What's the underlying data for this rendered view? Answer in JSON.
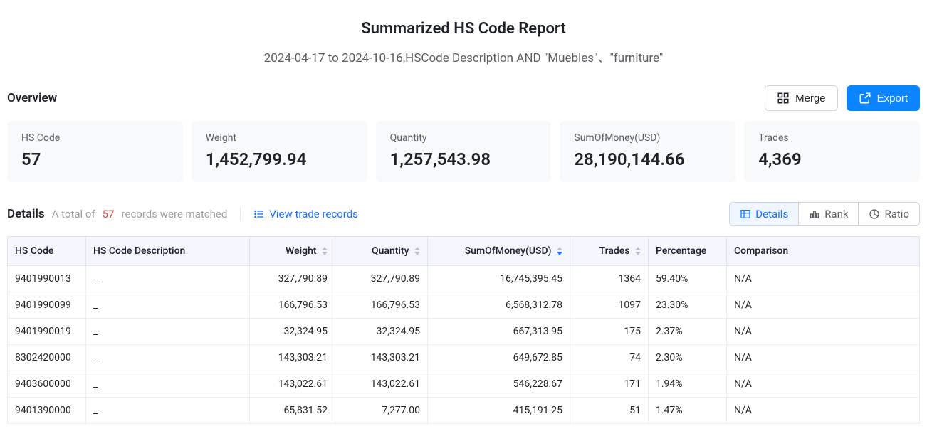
{
  "header": {
    "title": "Summarized HS Code Report",
    "subtitle": "2024-04-17 to 2024-10-16,HSCode Description AND \"Muebles\"、\"furniture\""
  },
  "overview": {
    "section_label": "Overview",
    "buttons": {
      "merge": "Merge",
      "export": "Export"
    },
    "cards": [
      {
        "label": "HS Code",
        "value": "57"
      },
      {
        "label": "Weight",
        "value": "1,452,799.94"
      },
      {
        "label": "Quantity",
        "value": "1,257,543.98"
      },
      {
        "label": "SumOfMoney(USD)",
        "value": "28,190,144.66"
      },
      {
        "label": "Trades",
        "value": "4,369"
      }
    ]
  },
  "details": {
    "section_label": "Details",
    "total_prefix": "A total of",
    "total_count": "57",
    "total_suffix": "records were matched",
    "view_records_label": "View trade records",
    "tabs": {
      "details": "Details",
      "rank": "Rank",
      "ratio": "Ratio"
    },
    "columns": [
      "HS Code",
      "HS Code Description",
      "Weight",
      "Quantity",
      "SumOfMoney(USD)",
      "Trades",
      "Percentage",
      "Comparison"
    ],
    "rows": [
      {
        "code": "9401990013",
        "desc": "_",
        "weight": "327,790.89",
        "quantity": "327,790.89",
        "sum": "16,745,395.45",
        "trades": "1364",
        "pct": "59.40%",
        "cmp": "N/A"
      },
      {
        "code": "9401990099",
        "desc": "_",
        "weight": "166,796.53",
        "quantity": "166,796.53",
        "sum": "6,568,312.78",
        "trades": "1097",
        "pct": "23.30%",
        "cmp": "N/A"
      },
      {
        "code": "9401990019",
        "desc": "_",
        "weight": "32,324.95",
        "quantity": "32,324.95",
        "sum": "667,313.95",
        "trades": "175",
        "pct": "2.37%",
        "cmp": "N/A"
      },
      {
        "code": "8302420000",
        "desc": "_",
        "weight": "143,303.21",
        "quantity": "143,303.21",
        "sum": "649,672.85",
        "trades": "74",
        "pct": "2.30%",
        "cmp": "N/A"
      },
      {
        "code": "9403600000",
        "desc": "_",
        "weight": "143,022.61",
        "quantity": "143,022.61",
        "sum": "546,228.67",
        "trades": "171",
        "pct": "1.94%",
        "cmp": "N/A"
      },
      {
        "code": "9401390000",
        "desc": "_",
        "weight": "65,831.52",
        "quantity": "7,277.00",
        "sum": "415,191.25",
        "trades": "51",
        "pct": "1.47%",
        "cmp": "N/A"
      }
    ],
    "colors": {
      "header_bg": "#f3f6fc",
      "accent": "#1971ff",
      "primary_btn": "#0b84ff",
      "border": "#e2e4e9",
      "count": "#e5484d"
    }
  }
}
